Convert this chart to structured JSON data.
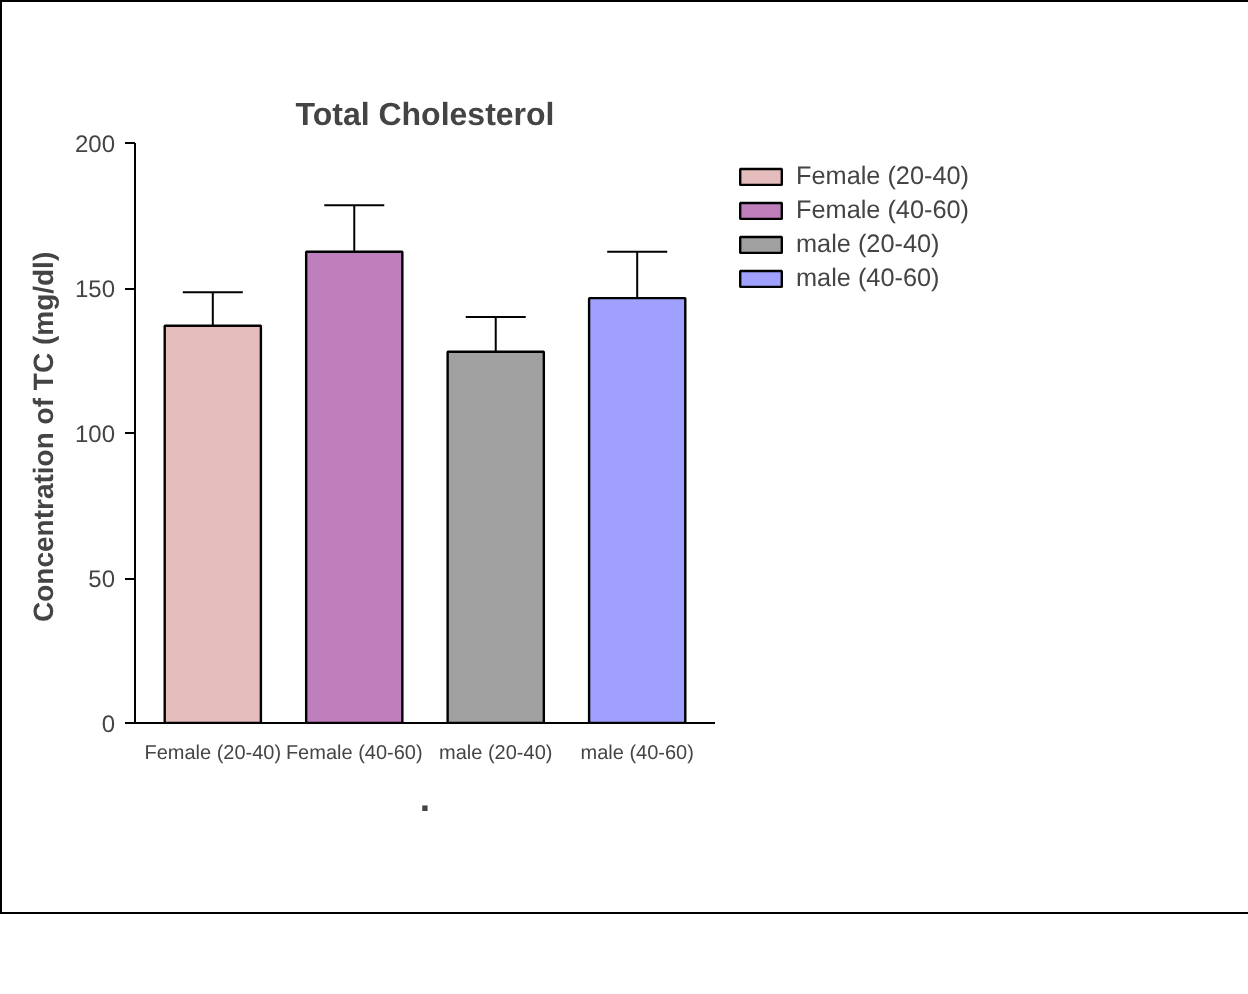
{
  "chart_data": {
    "type": "bar",
    "title": "Total Cholesterol",
    "ylabel": "Concentration of  TC (mg/dl)",
    "categories": [
      "Female (20-40)",
      "Female (40-60)",
      "male (20-40)",
      "male (40-60)"
    ],
    "series": [
      {
        "name": "Female (20-40)",
        "color": "#e4bcbc",
        "values": [
          137,
          null,
          null,
          null
        ],
        "errors": [
          11.5,
          null,
          null,
          null
        ]
      },
      {
        "name": "Female (40-60)",
        "color": "#bf7fbd",
        "values": [
          null,
          162.5,
          null,
          null
        ],
        "errors": [
          null,
          16,
          null,
          null
        ]
      },
      {
        "name": "male (20-40)",
        "color": "#a0a0a0",
        "values": [
          null,
          null,
          128,
          null
        ],
        "errors": [
          null,
          null,
          12,
          null
        ]
      },
      {
        "name": "male (40-60)",
        "color": "#a0a0fe",
        "values": [
          null,
          null,
          null,
          146.5
        ],
        "errors": [
          null,
          null,
          null,
          16
        ]
      }
    ],
    "ylim": [
      0,
      200
    ],
    "yticks": [
      0,
      50,
      100,
      150,
      200
    ],
    "legend": "right",
    "annotations": [
      "."
    ]
  }
}
